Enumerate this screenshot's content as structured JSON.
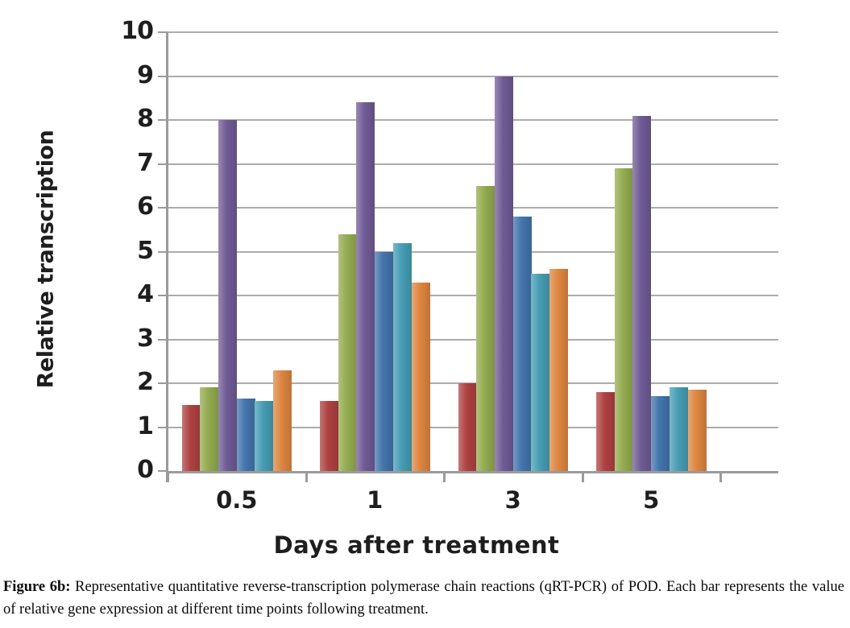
{
  "figure": {
    "caption_label": "Figure 6b:",
    "caption_text": " Representative quantitative reverse-transcription polymerase chain reactions (qRT-PCR) of POD. Each bar represents the value of relative gene expression at different time points following treatment."
  },
  "chart_data": {
    "type": "bar",
    "title": "",
    "xlabel": "Days after treatment",
    "ylabel": "Relative transcription",
    "categories": [
      "0.5",
      "1",
      "3",
      "5"
    ],
    "series": [
      {
        "name": "series-red",
        "color": "#AE4140",
        "values": [
          1.5,
          1.6,
          2.0,
          1.8
        ]
      },
      {
        "name": "series-green",
        "color": "#93AB4F",
        "values": [
          1.9,
          5.4,
          6.5,
          6.9
        ]
      },
      {
        "name": "series-purple",
        "color": "#6F5B95",
        "values": [
          8.0,
          8.4,
          9.0,
          8.1
        ]
      },
      {
        "name": "series-blue",
        "color": "#4374AC",
        "values": [
          1.65,
          5.0,
          5.8,
          1.7
        ]
      },
      {
        "name": "series-teal",
        "color": "#469DB4",
        "values": [
          1.6,
          5.2,
          4.5,
          1.9
        ]
      },
      {
        "name": "series-orange",
        "color": "#DD8640",
        "values": [
          2.3,
          4.3,
          4.6,
          1.85
        ]
      }
    ],
    "ylim": [
      0,
      10
    ],
    "yticks": [
      "0",
      "1",
      "2",
      "3",
      "4",
      "5",
      "6",
      "7",
      "8",
      "9",
      "10"
    ],
    "grid": true,
    "legend": "none",
    "colors": {
      "gridline": "#ACACAC",
      "axis": "#9B9B9B",
      "text": "#1E1E1E"
    }
  }
}
